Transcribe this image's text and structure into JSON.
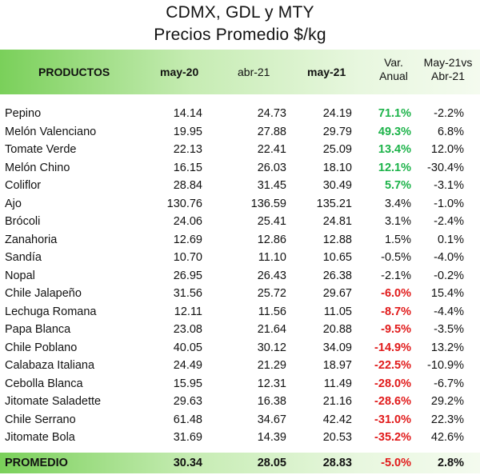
{
  "title": {
    "line1": "CDMX, GDL y MTY",
    "line2": "Precios Promedio $/kg"
  },
  "header": {
    "productos": "PRODUCTOS",
    "may20": "may-20",
    "abr21": "abr-21",
    "may21": "may-21",
    "var_line1": "Var.",
    "var_line2": "Anual",
    "mvs_line1": "May-21vs",
    "mvs_line2": "Abr-21"
  },
  "rows": [
    {
      "name": "Pepino",
      "may20": "14.14",
      "abr21": "24.73",
      "may21": "24.19",
      "var": "71.1%",
      "var_tone": "pos",
      "mvs": "-2.2%"
    },
    {
      "name": "Melón Valenciano",
      "may20": "19.95",
      "abr21": "27.88",
      "may21": "29.79",
      "var": "49.3%",
      "var_tone": "pos",
      "mvs": "6.8%"
    },
    {
      "name": "Tomate Verde",
      "may20": "22.13",
      "abr21": "22.41",
      "may21": "25.09",
      "var": "13.4%",
      "var_tone": "pos",
      "mvs": "12.0%"
    },
    {
      "name": "Melón Chino",
      "may20": "16.15",
      "abr21": "26.03",
      "may21": "18.10",
      "var": "12.1%",
      "var_tone": "pos",
      "mvs": "-30.4%"
    },
    {
      "name": "Coliflor",
      "may20": "28.84",
      "abr21": "31.45",
      "may21": "30.49",
      "var": "5.7%",
      "var_tone": "pos",
      "mvs": "-3.1%"
    },
    {
      "name": "Ajo",
      "may20": "130.76",
      "abr21": "136.59",
      "may21": "135.21",
      "var": "3.4%",
      "var_tone": "plain",
      "mvs": "-1.0%"
    },
    {
      "name": "Brócoli",
      "may20": "24.06",
      "abr21": "25.41",
      "may21": "24.81",
      "var": "3.1%",
      "var_tone": "plain",
      "mvs": "-2.4%"
    },
    {
      "name": "Zanahoria",
      "may20": "12.69",
      "abr21": "12.86",
      "may21": "12.88",
      "var": "1.5%",
      "var_tone": "plain",
      "mvs": "0.1%"
    },
    {
      "name": "Sandía",
      "may20": "10.70",
      "abr21": "11.10",
      "may21": "10.65",
      "var": "-0.5%",
      "var_tone": "plain",
      "mvs": "-4.0%"
    },
    {
      "name": "Nopal",
      "may20": "26.95",
      "abr21": "26.43",
      "may21": "26.38",
      "var": "-2.1%",
      "var_tone": "plain",
      "mvs": "-0.2%"
    },
    {
      "name": "Chile Jalapeño",
      "may20": "31.56",
      "abr21": "25.72",
      "may21": "29.67",
      "var": "-6.0%",
      "var_tone": "neg",
      "mvs": "15.4%"
    },
    {
      "name": "Lechuga Romana",
      "may20": "12.11",
      "abr21": "11.56",
      "may21": "11.05",
      "var": "-8.7%",
      "var_tone": "neg",
      "mvs": "-4.4%"
    },
    {
      "name": "Papa Blanca",
      "may20": "23.08",
      "abr21": "21.64",
      "may21": "20.88",
      "var": "-9.5%",
      "var_tone": "neg",
      "mvs": "-3.5%"
    },
    {
      "name": "Chile Poblano",
      "may20": "40.05",
      "abr21": "30.12",
      "may21": "34.09",
      "var": "-14.9%",
      "var_tone": "neg",
      "mvs": "13.2%"
    },
    {
      "name": "Calabaza Italiana",
      "may20": "24.49",
      "abr21": "21.29",
      "may21": "18.97",
      "var": "-22.5%",
      "var_tone": "neg",
      "mvs": "-10.9%"
    },
    {
      "name": "Cebolla Blanca",
      "may20": "15.95",
      "abr21": "12.31",
      "may21": "11.49",
      "var": "-28.0%",
      "var_tone": "neg",
      "mvs": "-6.7%"
    },
    {
      "name": "Jitomate Saladette",
      "may20": "29.63",
      "abr21": "16.38",
      "may21": "21.16",
      "var": "-28.6%",
      "var_tone": "neg",
      "mvs": "29.2%"
    },
    {
      "name": "Chile Serrano",
      "may20": "61.48",
      "abr21": "34.67",
      "may21": "42.42",
      "var": "-31.0%",
      "var_tone": "neg",
      "mvs": "22.3%"
    },
    {
      "name": "Jitomate Bola",
      "may20": "31.69",
      "abr21": "14.39",
      "may21": "20.53",
      "var": "-35.2%",
      "var_tone": "neg",
      "mvs": "42.6%"
    }
  ],
  "footer": {
    "label": "PROMEDIO",
    "may20": "30.34",
    "abr21": "28.05",
    "may21": "28.83",
    "var": "-5.0%",
    "var_tone": "neg",
    "mvs": "2.8%"
  },
  "colors": {
    "positive": "#1db34a",
    "negative": "#e11a1a",
    "header_green": "#7ad05a"
  }
}
